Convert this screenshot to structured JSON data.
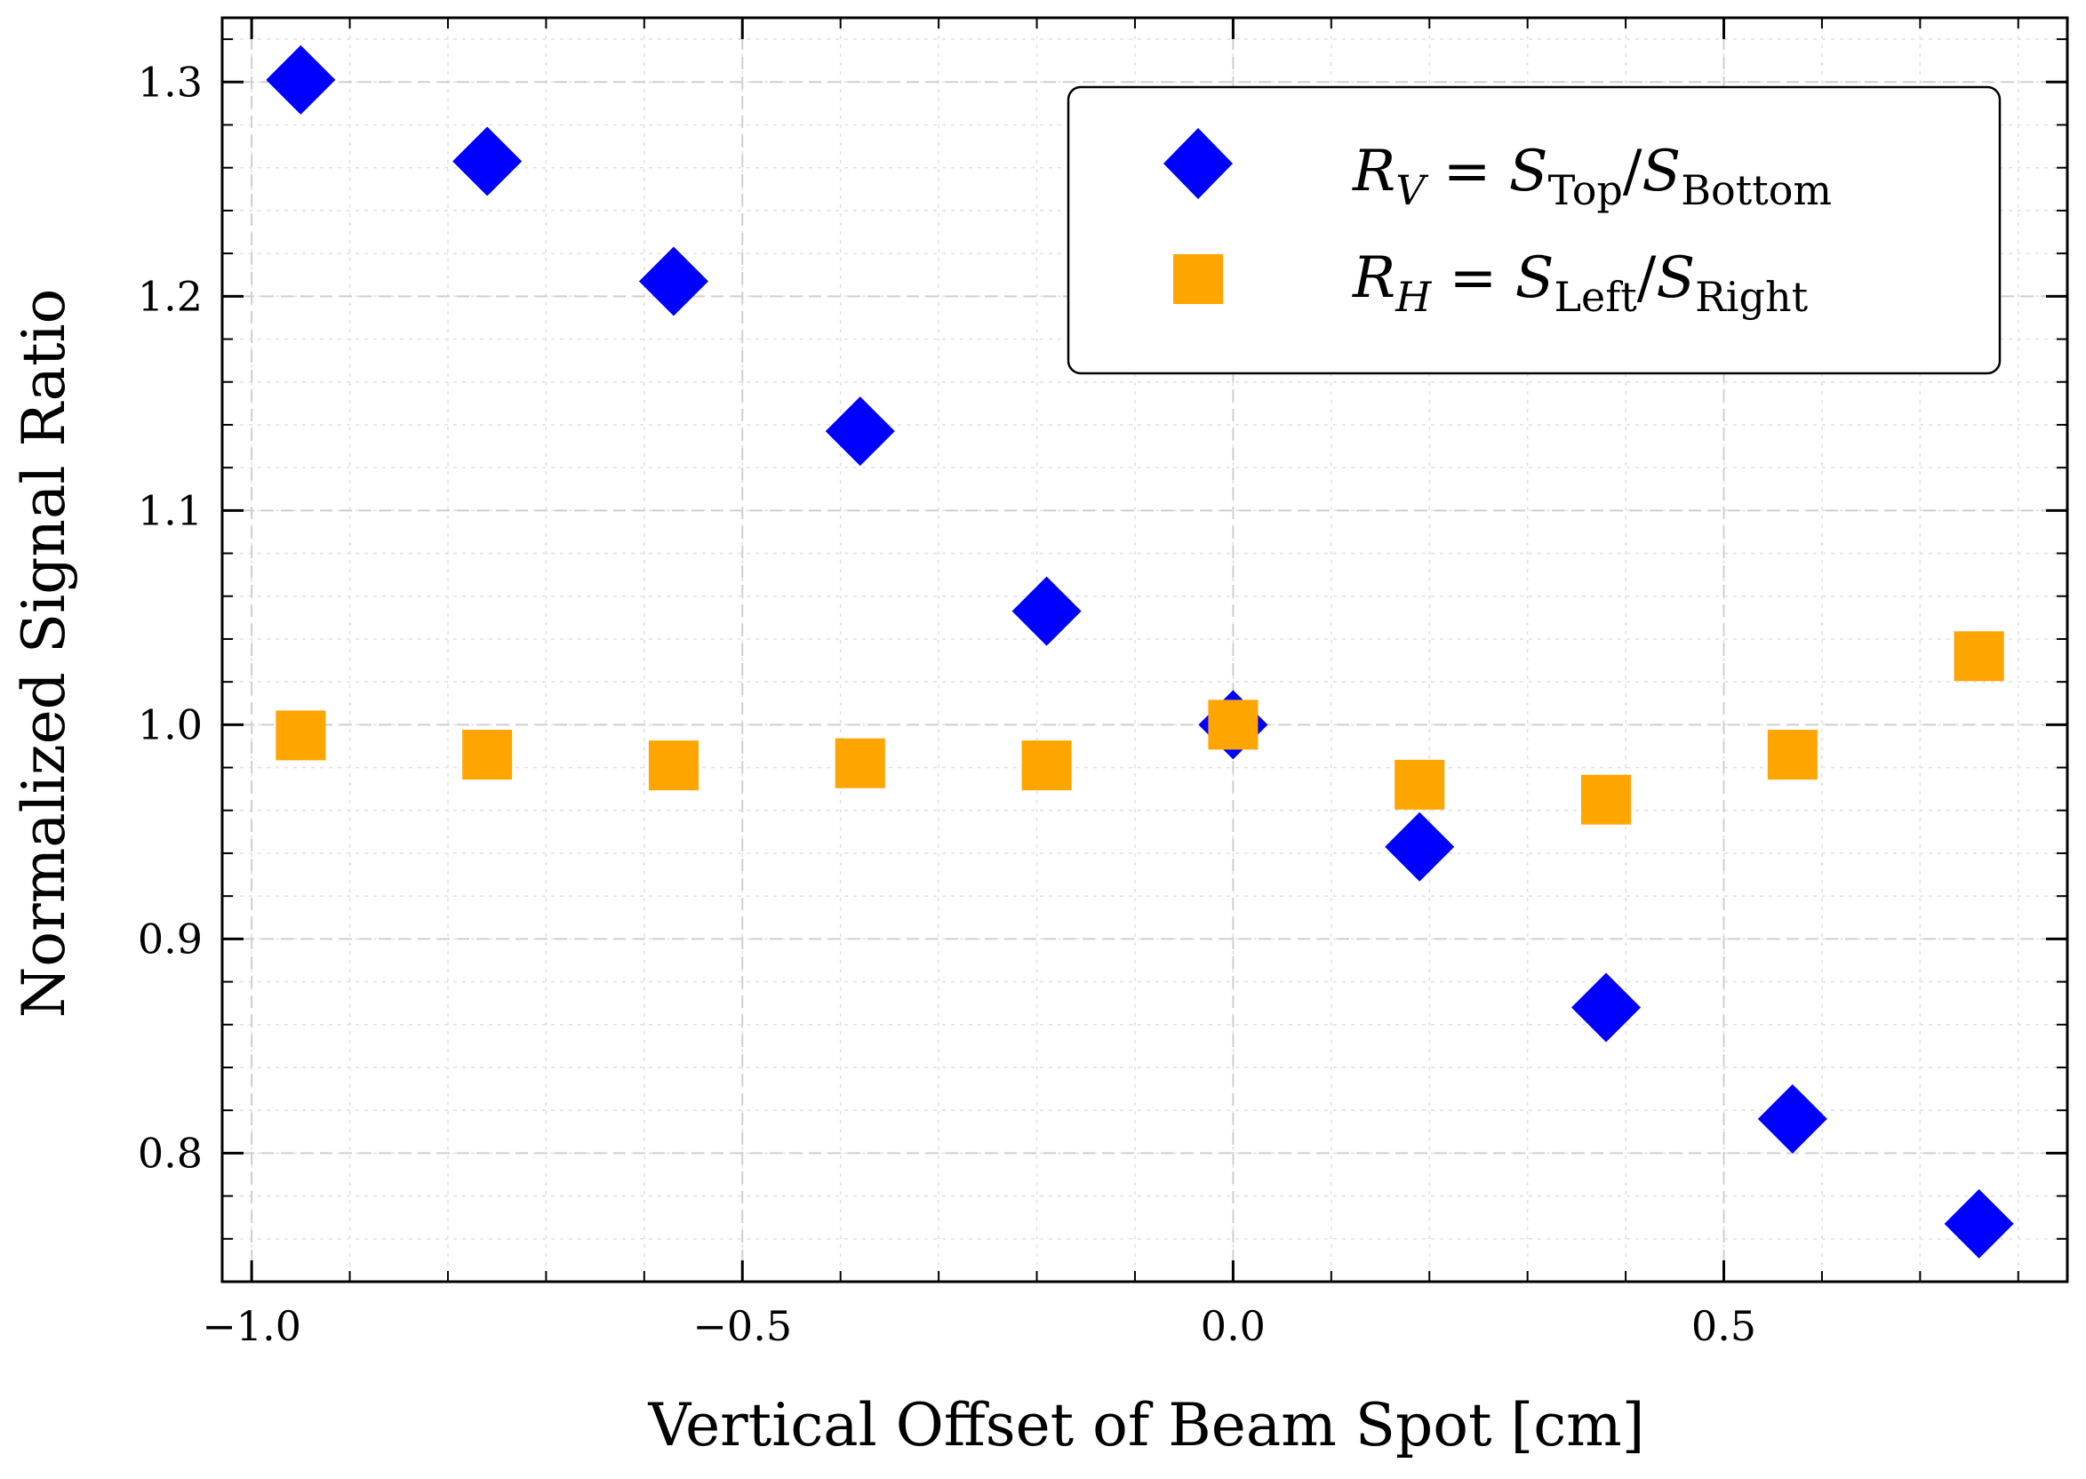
{
  "chart_data": {
    "type": "scatter",
    "title": "",
    "xlabel": "Vertical Offset of Beam Spot [cm]",
    "ylabel": "Normalized Signal Ratio",
    "xlim": [
      -1.03,
      0.85
    ],
    "ylim": [
      0.74,
      1.33
    ],
    "grid": true,
    "legend_position": "top-right",
    "x_ticks": [
      {
        "value": -1.0,
        "label": "−1.0"
      },
      {
        "value": -0.5,
        "label": "−0.5"
      },
      {
        "value": 0.0,
        "label": "0.0"
      },
      {
        "value": 0.5,
        "label": "0.5"
      }
    ],
    "y_ticks": [
      {
        "value": 0.8,
        "label": "0.8"
      },
      {
        "value": 0.9,
        "label": "0.9"
      },
      {
        "value": 1.0,
        "label": "1.0"
      },
      {
        "value": 1.1,
        "label": "1.1"
      },
      {
        "value": 1.2,
        "label": "1.2"
      },
      {
        "value": 1.3,
        "label": "1.3"
      }
    ],
    "series": [
      {
        "name": "R_V = S_Top / S_Bottom",
        "legend": {
          "var": "R",
          "var_sub": "V",
          "eq": " = ",
          "num": "S",
          "num_sub": "Top",
          "slash": "/",
          "den": "S",
          "den_sub": "Bottom"
        },
        "marker": "diamond",
        "color": "#0000ff",
        "x": [
          -0.95,
          -0.76,
          -0.57,
          -0.38,
          -0.19,
          0.0,
          0.19,
          0.38,
          0.57,
          0.76
        ],
        "y": [
          1.301,
          1.263,
          1.207,
          1.137,
          1.053,
          1.0,
          0.943,
          0.868,
          0.816,
          0.767
        ]
      },
      {
        "name": "R_H = S_Left / S_Right",
        "legend": {
          "var": "R",
          "var_sub": "H",
          "eq": " = ",
          "num": "S",
          "num_sub": "Left",
          "slash": "/",
          "den": "S",
          "den_sub": "Right"
        },
        "marker": "square",
        "color": "#ffa500",
        "x": [
          -0.95,
          -0.76,
          -0.57,
          -0.38,
          -0.19,
          0.0,
          0.19,
          0.38,
          0.57,
          0.76
        ],
        "y": [
          0.995,
          0.986,
          0.981,
          0.982,
          0.981,
          1.0,
          0.972,
          0.965,
          0.986,
          1.032
        ]
      }
    ]
  }
}
